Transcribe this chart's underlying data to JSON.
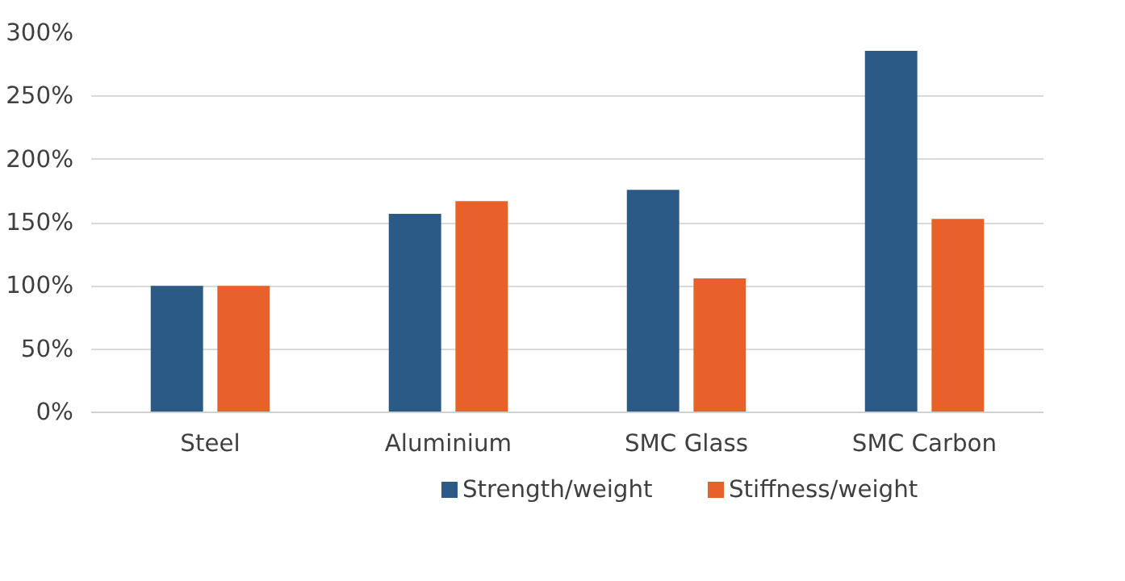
{
  "chart_data": {
    "type": "bar",
    "categories": [
      "Steel",
      "Aluminium",
      "SMC Glass",
      "SMC Carbon"
    ],
    "series": [
      {
        "name": "Strength/weight",
        "color": "#2a5a85",
        "values": [
          100,
          157,
          176,
          286
        ]
      },
      {
        "name": "Stiffness/weight",
        "color": "#e8602a",
        "values": [
          100,
          167,
          106,
          153
        ]
      }
    ],
    "ylim": [
      0,
      300
    ],
    "yticks": [
      {
        "value": 0,
        "label": "0%"
      },
      {
        "value": 50,
        "label": "50%"
      },
      {
        "value": 100,
        "label": "100%"
      },
      {
        "value": 150,
        "label": "150%"
      },
      {
        "value": 200,
        "label": "200%"
      },
      {
        "value": 250,
        "label": "250%"
      },
      {
        "value": 300,
        "label": "300%"
      }
    ],
    "grid": "y",
    "legend": "bottom"
  }
}
